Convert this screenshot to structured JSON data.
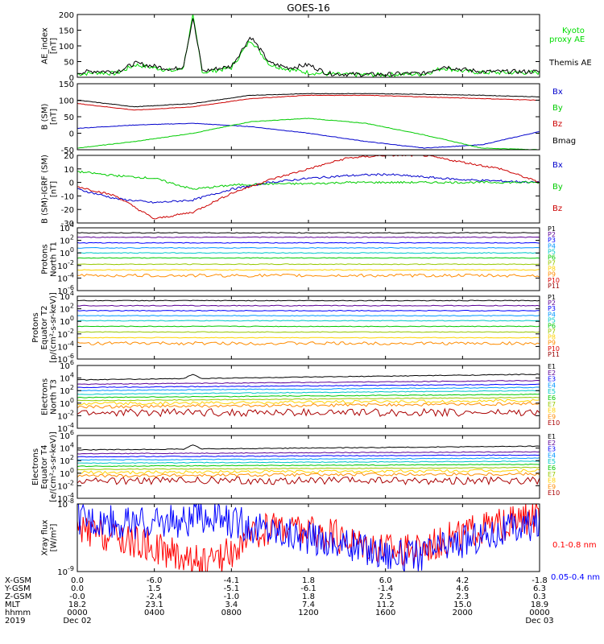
{
  "title": "GOES-16",
  "chart_data": [
    {
      "type": "line",
      "ylabel": [
        "AE_index",
        "[nT]"
      ],
      "ylim": [
        0,
        200
      ],
      "yticks": [
        "0",
        "50",
        "100",
        "150",
        "200"
      ],
      "log": false,
      "series": [
        {
          "name": "Kyoto",
          "name2": "proxy AE",
          "color": "#00dd00",
          "x": [
            0,
            1,
            2,
            2.5,
            3,
            3.5,
            4,
            4.5,
            5,
            5.5,
            6,
            6.5,
            7,
            8,
            9,
            10,
            11,
            12,
            13,
            14,
            15,
            16,
            17,
            18,
            19,
            20,
            21,
            22,
            23,
            24
          ],
          "values": [
            10,
            15,
            12,
            25,
            40,
            35,
            30,
            25,
            20,
            30,
            195,
            15,
            20,
            30,
            120,
            40,
            25,
            15,
            10,
            8,
            8,
            8,
            10,
            10,
            30,
            20,
            15,
            15,
            15,
            15
          ]
        },
        {
          "name": "Themis AE",
          "color": "#000000",
          "x": [
            0,
            1,
            2,
            2.5,
            3,
            3.5,
            4,
            4.5,
            5,
            5.5,
            6,
            6.5,
            7,
            8,
            9,
            10,
            11,
            12,
            13,
            14,
            15,
            16,
            17,
            18,
            19,
            20,
            21,
            22,
            23,
            24
          ],
          "values": [
            15,
            20,
            18,
            30,
            45,
            40,
            35,
            30,
            25,
            35,
            190,
            18,
            25,
            35,
            130,
            45,
            30,
            40,
            12,
            10,
            9,
            9,
            12,
            12,
            35,
            25,
            18,
            18,
            18,
            18
          ]
        }
      ]
    },
    {
      "type": "line",
      "ylabel": [
        "B (SM)",
        "[nT]"
      ],
      "ylim": [
        -50,
        150
      ],
      "yticks": [
        "-50",
        "0",
        "50",
        "100",
        "150"
      ],
      "log": false,
      "series": [
        {
          "name": "Bx",
          "color": "#0000cc",
          "x": [
            0,
            3,
            6,
            9,
            12,
            15,
            18,
            21,
            24
          ],
          "values": [
            15,
            25,
            30,
            20,
            0,
            -25,
            -45,
            -35,
            5
          ]
        },
        {
          "name": "By",
          "color": "#00cc00",
          "x": [
            0,
            3,
            6,
            9,
            12,
            15,
            18,
            21,
            24
          ],
          "values": [
            -45,
            -25,
            0,
            35,
            45,
            30,
            -5,
            -45,
            -50
          ]
        },
        {
          "name": "Bz",
          "color": "#cc0000",
          "x": [
            0,
            3,
            6,
            9,
            12,
            15,
            18,
            21,
            24
          ],
          "values": [
            90,
            70,
            80,
            105,
            115,
            115,
            110,
            105,
            100
          ]
        },
        {
          "name": "Bmag",
          "color": "#000000",
          "x": [
            0,
            3,
            6,
            9,
            12,
            15,
            18,
            21,
            24
          ],
          "values": [
            100,
            80,
            90,
            115,
            120,
            120,
            118,
            115,
            110
          ]
        }
      ]
    },
    {
      "type": "line",
      "ylabel": [
        "B (SM)-IGRF (SM)",
        "[nT]"
      ],
      "ylim": [
        -30,
        20
      ],
      "yticks": [
        "-30",
        "-20",
        "-10",
        "0",
        "10",
        "20"
      ],
      "log": false,
      "series": [
        {
          "name": "Bx",
          "color": "#0000cc",
          "x": [
            0,
            2,
            4,
            6,
            8,
            10,
            12,
            14,
            16,
            18,
            20,
            22,
            24
          ],
          "values": [
            -5,
            -12,
            -15,
            -13,
            -5,
            0,
            3,
            5,
            6,
            4,
            2,
            1,
            0
          ]
        },
        {
          "name": "By",
          "color": "#00cc00",
          "x": [
            0,
            2,
            4,
            6,
            8,
            10,
            12,
            14,
            16,
            18,
            20,
            22,
            24
          ],
          "values": [
            8,
            5,
            3,
            -5,
            -2,
            -1,
            -1,
            0,
            0,
            0,
            0,
            0,
            0
          ]
        },
        {
          "name": "Bz",
          "color": "#cc0000",
          "x": [
            0,
            2,
            4,
            6,
            8,
            10,
            12,
            14,
            16,
            18,
            20,
            22,
            24
          ],
          "values": [
            -3,
            -10,
            -27,
            -22,
            -8,
            2,
            10,
            18,
            20,
            20,
            15,
            10,
            0
          ]
        }
      ]
    },
    {
      "type": "line",
      "ylabel": [
        "Protons",
        "North T1"
      ],
      "ylim": [
        -6,
        4
      ],
      "yticks": [
        "10^4",
        "10^2",
        "10^0",
        "10^-2",
        "10^-4",
        "10^-6"
      ],
      "log": true,
      "series": [
        {
          "name": "P1",
          "color": "#000000",
          "values": [
            3.2,
            3.2
          ]
        },
        {
          "name": "P2",
          "color": "#5c0096",
          "values": [
            2.5,
            2.5
          ]
        },
        {
          "name": "P3",
          "color": "#0000ff",
          "values": [
            1.6,
            1.6
          ]
        },
        {
          "name": "P4",
          "color": "#0096ff",
          "values": [
            0.8,
            0.8
          ]
        },
        {
          "name": "P5",
          "color": "#00c8c8",
          "values": [
            0.0,
            0.0
          ]
        },
        {
          "name": "P6",
          "color": "#00c800",
          "values": [
            -0.8,
            -0.8
          ]
        },
        {
          "name": "P7",
          "color": "#96c800",
          "values": [
            -1.8,
            -1.8
          ]
        },
        {
          "name": "P8",
          "color": "#ffd200",
          "values": [
            -2.7,
            -2.7
          ]
        },
        {
          "name": "P9",
          "color": "#ff8c00",
          "values": [
            -3.6,
            -3.6
          ]
        },
        {
          "name": "P10",
          "color": "#dc0000",
          "values": []
        },
        {
          "name": "P11",
          "color": "#960000",
          "values": []
        }
      ]
    },
    {
      "type": "line",
      "ylabel": [
        "Protons",
        "Equator T2",
        "[p/(cm²-s-sr-keV)]"
      ],
      "ylim": [
        -6,
        4
      ],
      "yticks": [
        "10^4",
        "10^2",
        "10^0",
        "10^-2",
        "10^-4",
        "10^-6"
      ],
      "log": true,
      "series": [
        {
          "name": "P1",
          "color": "#000000",
          "values": [
            3.3,
            3.3
          ]
        },
        {
          "name": "P2",
          "color": "#5c0096",
          "values": [
            2.5,
            2.5
          ]
        },
        {
          "name": "P3",
          "color": "#0000ff",
          "values": [
            1.7,
            1.7
          ]
        },
        {
          "name": "P4",
          "color": "#0096ff",
          "values": [
            0.9,
            0.9
          ]
        },
        {
          "name": "P5",
          "color": "#00c8c8",
          "values": [
            0.1,
            0.1
          ]
        },
        {
          "name": "P6",
          "color": "#00c800",
          "values": [
            -0.8,
            -0.8
          ]
        },
        {
          "name": "P7",
          "color": "#96c800",
          "values": [
            -1.7,
            -1.7
          ]
        },
        {
          "name": "P8",
          "color": "#ffd200",
          "values": [
            -2.6,
            -2.6
          ]
        },
        {
          "name": "P9",
          "color": "#ff8c00",
          "values": [
            -3.5,
            -3.5
          ]
        },
        {
          "name": "P10",
          "color": "#dc0000",
          "values": []
        },
        {
          "name": "P11",
          "color": "#960000",
          "values": []
        }
      ]
    },
    {
      "type": "line",
      "ylabel": [
        "Electrons",
        "North T3"
      ],
      "ylim": [
        -4,
        6
      ],
      "yticks": [
        "10^6",
        "10^4",
        "10^2",
        "10^0",
        "10^-2",
        "10^-4"
      ],
      "log": true,
      "series": [
        {
          "name": "E1",
          "color": "#000000",
          "values": [
            3.7,
            4.6
          ]
        },
        {
          "name": "E2",
          "color": "#5c0096",
          "values": [
            3.0,
            3.6
          ]
        },
        {
          "name": "E3",
          "color": "#0000ff",
          "values": [
            2.5,
            3.0
          ]
        },
        {
          "name": "E4",
          "color": "#0096ff",
          "values": [
            2.0,
            2.5
          ]
        },
        {
          "name": "E5",
          "color": "#00c8c8",
          "values": [
            1.4,
            2.0
          ]
        },
        {
          "name": "E6",
          "color": "#00c800",
          "values": [
            0.9,
            1.4
          ]
        },
        {
          "name": "E7",
          "color": "#96c800",
          "values": [
            0.4,
            0.9
          ]
        },
        {
          "name": "E8",
          "color": "#ffd200",
          "values": [
            -0.1,
            0.4
          ]
        },
        {
          "name": "E9",
          "color": "#ff8c00",
          "values": [
            -0.6,
            -0.1
          ]
        },
        {
          "name": "E10",
          "color": "#aa0000",
          "values": [
            -1.5,
            -1.5
          ]
        }
      ]
    },
    {
      "type": "line",
      "ylabel": [
        "Electrons",
        "Equator T4",
        "[e/(cm²-s-sr-keV)]"
      ],
      "ylim": [
        -4,
        6
      ],
      "yticks": [
        "10^6",
        "10^4",
        "10^2",
        "10^0",
        "10^-2",
        "10^-4"
      ],
      "log": true,
      "series": [
        {
          "name": "E1",
          "color": "#000000",
          "values": [
            3.7,
            4.3
          ]
        },
        {
          "name": "E2",
          "color": "#5c0096",
          "values": [
            3.1,
            3.4
          ]
        },
        {
          "name": "E3",
          "color": "#0000ff",
          "values": [
            2.6,
            2.9
          ]
        },
        {
          "name": "E4",
          "color": "#0096ff",
          "values": [
            2.1,
            2.4
          ]
        },
        {
          "name": "E5",
          "color": "#00c8c8",
          "values": [
            1.6,
            1.9
          ]
        },
        {
          "name": "E6",
          "color": "#00c800",
          "values": [
            1.1,
            1.4
          ]
        },
        {
          "name": "E7",
          "color": "#96c800",
          "values": [
            0.6,
            0.9
          ]
        },
        {
          "name": "E8",
          "color": "#ffd200",
          "values": [
            0.1,
            0.4
          ]
        },
        {
          "name": "E9",
          "color": "#ff8c00",
          "values": [
            -0.4,
            -0.1
          ]
        },
        {
          "name": "E10",
          "color": "#aa0000",
          "values": [
            -1.2,
            -1.2
          ]
        }
      ]
    },
    {
      "type": "line",
      "ylabel": [
        "Xray flux",
        "[W/m²]"
      ],
      "ylim": [
        -9,
        -8
      ],
      "yticks": [
        "10^-8",
        "10^-9"
      ],
      "log": true,
      "series": [
        {
          "name": "0.1-0.8 nm",
          "color": "#ff0000",
          "values": [
            -8.4,
            -8.6,
            -8.9,
            -8.3,
            -8.5,
            -8.7,
            -8.4,
            -8.2
          ]
        },
        {
          "name": "0.05-0.4 nm",
          "color": "#0000ff",
          "values": [
            -8.2,
            -8.3,
            -8.2,
            -8.4,
            -8.6,
            -8.8,
            -8.5,
            -8.3
          ]
        }
      ]
    }
  ],
  "xaxis": {
    "hours": [
      0,
      4,
      8,
      12,
      16,
      20,
      24
    ],
    "rows": [
      {
        "label": "X-GSM",
        "values": [
          "0.0",
          "-6.0",
          "-4.1",
          "1.8",
          "6.0",
          "4.2",
          "-1.8"
        ]
      },
      {
        "label": "Y-GSM",
        "values": [
          "0.0",
          "1.5",
          "-5.1",
          "-6.1",
          "-1.4",
          "4.6",
          "6.3"
        ]
      },
      {
        "label": "Z-GSM",
        "values": [
          "-0.0",
          "-2.4",
          "-1.0",
          "1.8",
          "2.5",
          "2.3",
          "0.3"
        ]
      },
      {
        "label": "MLT",
        "values": [
          "18.2",
          "23.1",
          "3.4",
          "7.4",
          "11.2",
          "15.0",
          "18.9"
        ]
      },
      {
        "label": "hhmm",
        "values": [
          "0000",
          "0400",
          "0800",
          "1200",
          "1600",
          "2000",
          "0000"
        ]
      },
      {
        "label": "2019",
        "values": [
          "Dec 02",
          "",
          "",
          "",
          "",
          "",
          "Dec 03"
        ]
      }
    ]
  }
}
